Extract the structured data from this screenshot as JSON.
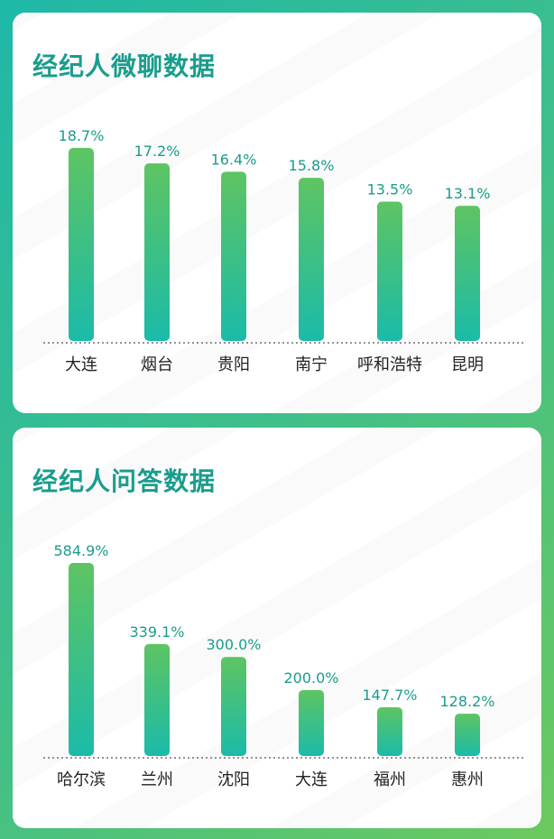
{
  "chart_data": [
    {
      "type": "bar",
      "title": "经纪人微聊数据",
      "categories": [
        "大连",
        "烟台",
        "贵阳",
        "南宁",
        "呼和浩特",
        "昆明"
      ],
      "values": [
        18.7,
        17.2,
        16.4,
        15.8,
        13.5,
        13.1
      ],
      "value_labels": [
        "18.7%",
        "17.2%",
        "16.4%",
        "15.8%",
        "13.5%",
        "13.1%"
      ],
      "unit": "%",
      "ylim": [
        0,
        18.7
      ],
      "grid": false
    },
    {
      "type": "bar",
      "title": "经纪人问答数据",
      "categories": [
        "哈尔滨",
        "兰州",
        "沈阳",
        "大连",
        "福州",
        "惠州"
      ],
      "values": [
        584.9,
        339.1,
        300.0,
        200.0,
        147.7,
        128.2
      ],
      "value_labels": [
        "584.9%",
        "339.1%",
        "300.0%",
        "200.0%",
        "147.7%",
        "128.2%"
      ],
      "unit": "%",
      "ylim": [
        0,
        584.9
      ],
      "grid": false
    }
  ],
  "colors": {
    "bar_top": "#5ec462",
    "bar_bottom": "#1bbba9",
    "title": "#1a9d8c",
    "value_label": "#1a9d8c",
    "category_label": "#222222",
    "baseline": "#555555"
  }
}
